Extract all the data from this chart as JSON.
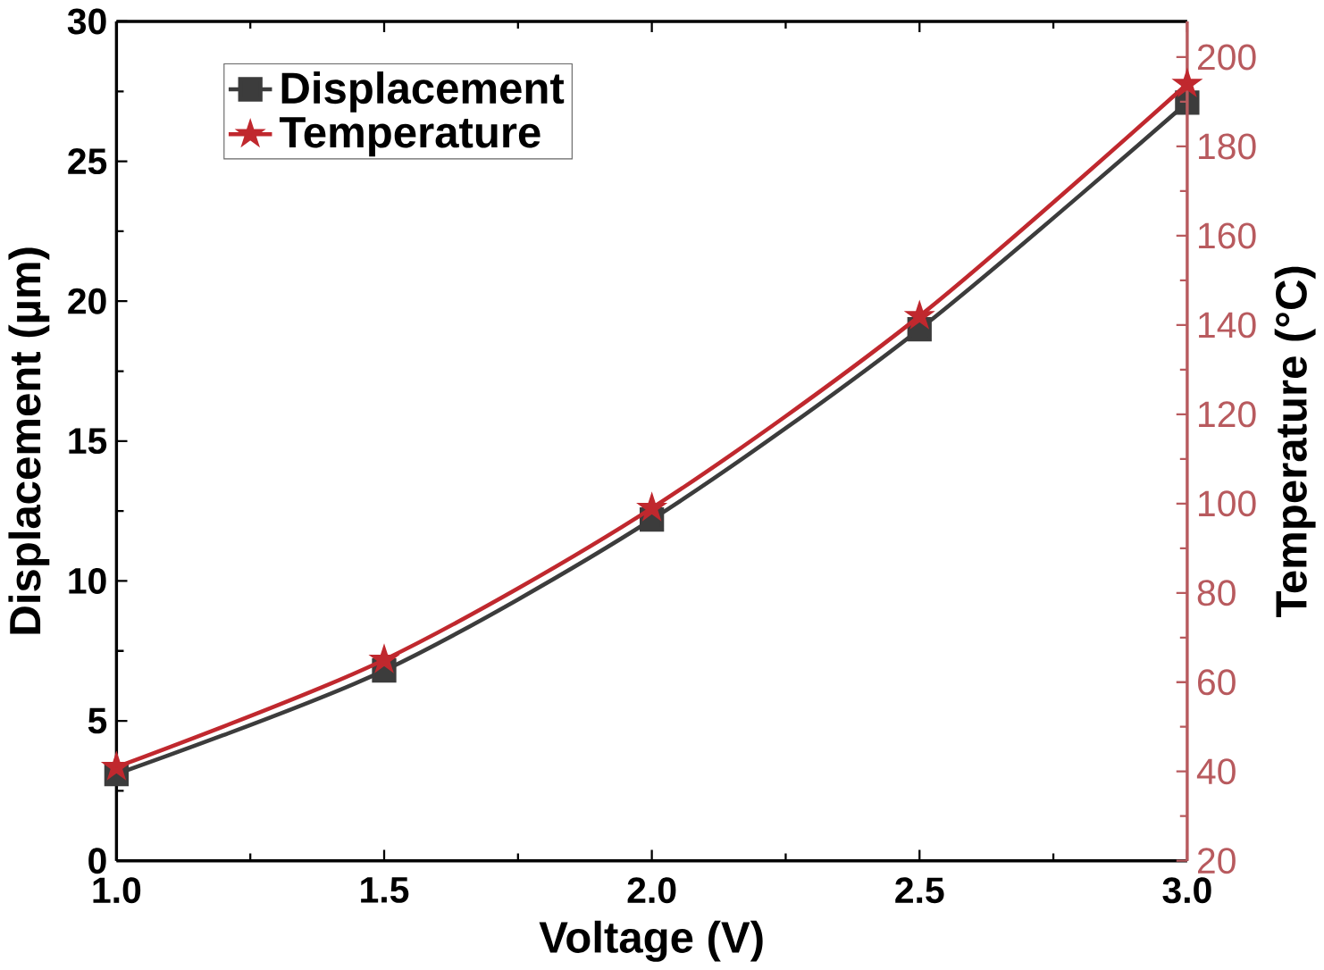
{
  "chart_data": {
    "type": "line",
    "xlabel": "Voltage (V)",
    "ylabel": "Displacement (µm)",
    "y2label": "Temperature (°C)",
    "x": [
      1.0,
      1.5,
      2.0,
      2.5,
      3.0
    ],
    "series": [
      {
        "name": "Displacement",
        "color": "#3c3c3c",
        "marker": "square",
        "values": [
          3.1,
          6.8,
          12.2,
          19.0,
          27.1
        ]
      },
      {
        "name": "Temperature",
        "color": "#c0282e",
        "marker": "star",
        "axis": "y2",
        "values": [
          41,
          65,
          99,
          142,
          194
        ]
      }
    ],
    "xlim": [
      1.0,
      3.0
    ],
    "xticks": [
      {
        "value": 1.0,
        "label": "1.0"
      },
      {
        "value": 1.5,
        "label": "1.5"
      },
      {
        "value": 2.0,
        "label": "2.0"
      },
      {
        "value": 2.5,
        "label": "2.5"
      },
      {
        "value": 3.0,
        "label": "3.0"
      }
    ],
    "ylim": [
      0,
      30
    ],
    "yticks": [
      0,
      5,
      10,
      15,
      20,
      25,
      30
    ],
    "y2lim": [
      20,
      208
    ],
    "y2ticks": [
      20,
      40,
      60,
      80,
      100,
      120,
      140,
      160,
      180,
      200
    ],
    "legend": "top left",
    "grid": false
  }
}
